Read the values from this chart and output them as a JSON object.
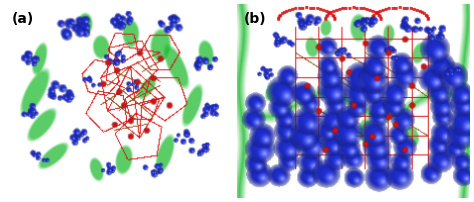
{
  "figsize": [
    4.74,
    2.02
  ],
  "dpi": 100,
  "background_color": "#ffffff",
  "panel_a_label": "(a)",
  "panel_b_label": "(b)",
  "label_fontsize": 10,
  "label_fontweight": "bold",
  "label_color": "#000000",
  "border_color": "#000000",
  "border_lw": 0.5
}
